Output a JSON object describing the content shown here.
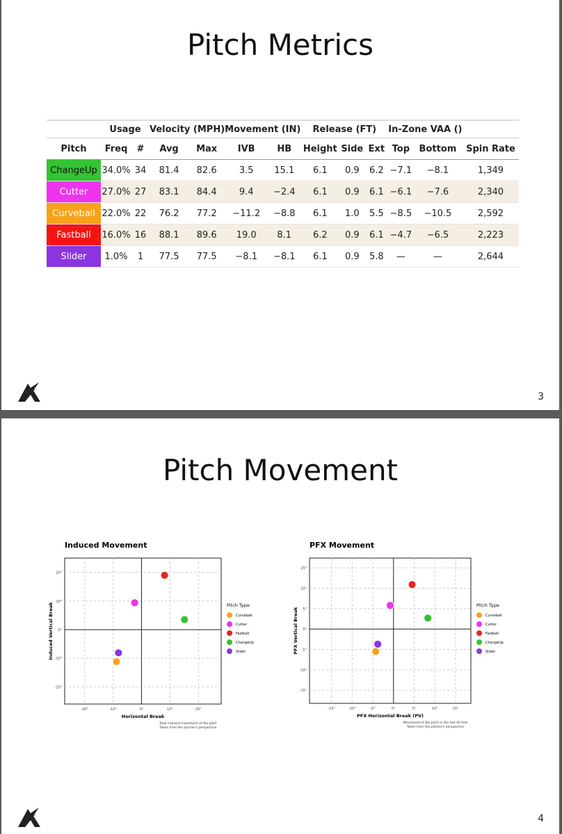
{
  "slides": [
    {
      "title": "Pitch Metrics",
      "table": {
        "groups": [
          "Usage",
          "Velocity (MPH)",
          "Movement (IN)",
          "Release (FT)",
          "In-Zone VAA ()"
        ],
        "columns": [
          "Pitch",
          "Freq",
          "#",
          "Avg",
          "Max",
          "IVB",
          "HB",
          "Height",
          "Side",
          "Ext",
          "Top",
          "Bottom",
          "Spin Rate"
        ],
        "rows": [
          {
            "color": "#33c433",
            "cells": [
              "ChangeUp",
              "34.0%",
              "34",
              "81.4",
              "82.6",
              "3.5",
              "15.1",
              "6.1",
              "0.9",
              "6.2",
              "−7.1",
              "−8.1",
              "1,349"
            ]
          },
          {
            "color": "#ee33ee",
            "cells": [
              "Cutter",
              "27.0%",
              "27",
              "83.1",
              "84.4",
              "9.4",
              "−2.4",
              "6.1",
              "0.9",
              "6.1",
              "−6.1",
              "−7.6",
              "2,340"
            ]
          },
          {
            "color": "#f7a21b",
            "cells": [
              "Curveball",
              "22.0%",
              "22",
              "76.2",
              "77.2",
              "−11.2",
              "−8.8",
              "6.1",
              "1.0",
              "5.5",
              "−8.5",
              "−10.5",
              "2,592"
            ]
          },
          {
            "color": "#f51414",
            "cells": [
              "Fastball",
              "16.0%",
              "16",
              "88.1",
              "89.6",
              "19.0",
              "8.1",
              "6.2",
              "0.9",
              "6.1",
              "−4.7",
              "−6.5",
              "2,223"
            ]
          },
          {
            "color": "#8a35e0",
            "cells": [
              "Slider",
              "1.0%",
              "1",
              "77.5",
              "77.5",
              "−8.1",
              "−8.1",
              "6.1",
              "0.9",
              "5.8",
              "—",
              "—",
              "2,644"
            ]
          }
        ]
      },
      "page_number": "3"
    },
    {
      "title": "Pitch Movement",
      "page_number": "4"
    }
  ],
  "chart_data": [
    {
      "type": "scatter",
      "title": "Induced Movement",
      "x_label": "Horizontal Break",
      "y_label": "Induced Vertical Break",
      "notes": [
        "Total induced movement of the pitch",
        "Taken from the pitcher's perspective"
      ],
      "legend_title": "Pitch Type",
      "legend": "right",
      "grid": true,
      "xlim": [
        -27,
        28
      ],
      "ylim": [
        -26,
        25
      ],
      "xticks": [
        {
          "value": -20,
          "label": "-20\""
        },
        {
          "value": -10,
          "label": "-10\""
        },
        {
          "value": 0,
          "label": "0\""
        },
        {
          "value": 10,
          "label": "10\""
        },
        {
          "value": 20,
          "label": "20\""
        }
      ],
      "yticks": [
        {
          "value": -20,
          "label": "-20\""
        },
        {
          "value": -10,
          "label": "-10\""
        },
        {
          "value": 0,
          "label": "0\""
        },
        {
          "value": 10,
          "label": "10\""
        },
        {
          "value": 20,
          "label": "20\""
        }
      ],
      "series": [
        {
          "name": "Curveball",
          "color": "#f7a21b",
          "x": [
            -8.8
          ],
          "values": [
            -11.2
          ]
        },
        {
          "name": "Cutter",
          "color": "#ee33ee",
          "x": [
            -2.4
          ],
          "values": [
            9.4
          ]
        },
        {
          "name": "Fastball",
          "color": "#e8261c",
          "x": [
            8.1
          ],
          "values": [
            19.0
          ]
        },
        {
          "name": "ChangeUp",
          "color": "#33c433",
          "x": [
            15.1
          ],
          "values": [
            3.5
          ]
        },
        {
          "name": "Slider",
          "color": "#8a35e0",
          "x": [
            -8.1
          ],
          "values": [
            -8.1
          ]
        }
      ]
    },
    {
      "type": "scatter",
      "title": "PFX Movement",
      "x_label": "PFX Horizontal Break (PV)",
      "y_label": "PFX Vertical Break",
      "notes": [
        "Movement of the pitch in the last 40 feet",
        "Taken from the pitcher's perspective"
      ],
      "legend_title": "Pitch Type",
      "legend": "right",
      "grid": true,
      "xlim": [
        -20.3,
        18.7
      ],
      "ylim": [
        -18.2,
        17.4
      ],
      "xticks": [
        {
          "value": -15,
          "label": "-15\""
        },
        {
          "value": -10,
          "label": "-10\""
        },
        {
          "value": -5,
          "label": "-5\""
        },
        {
          "value": 0,
          "label": "0\""
        },
        {
          "value": 5,
          "label": "5\""
        },
        {
          "value": 10,
          "label": "10\""
        },
        {
          "value": 15,
          "label": "15\""
        }
      ],
      "yticks": [
        {
          "value": -15,
          "label": "-15\""
        },
        {
          "value": -10,
          "label": "-10\""
        },
        {
          "value": -5,
          "label": "-5\""
        },
        {
          "value": 0,
          "label": "0\""
        },
        {
          "value": 5,
          "label": "5\""
        },
        {
          "value": 10,
          "label": "10\""
        },
        {
          "value": 15,
          "label": "15\""
        }
      ],
      "series": [
        {
          "name": "Curveball",
          "color": "#f7a21b",
          "x": [
            -4.3
          ],
          "values": [
            -5.5
          ]
        },
        {
          "name": "Cutter",
          "color": "#ee33ee",
          "x": [
            -0.8
          ],
          "values": [
            5.8
          ]
        },
        {
          "name": "Fastball",
          "color": "#e8261c",
          "x": [
            4.5
          ],
          "values": [
            10.9
          ]
        },
        {
          "name": "ChangeUp",
          "color": "#33c433",
          "x": [
            8.3
          ],
          "values": [
            2.7
          ]
        },
        {
          "name": "Slider",
          "color": "#8a35e0",
          "x": [
            -3.8
          ],
          "values": [
            -3.7
          ]
        }
      ]
    }
  ]
}
